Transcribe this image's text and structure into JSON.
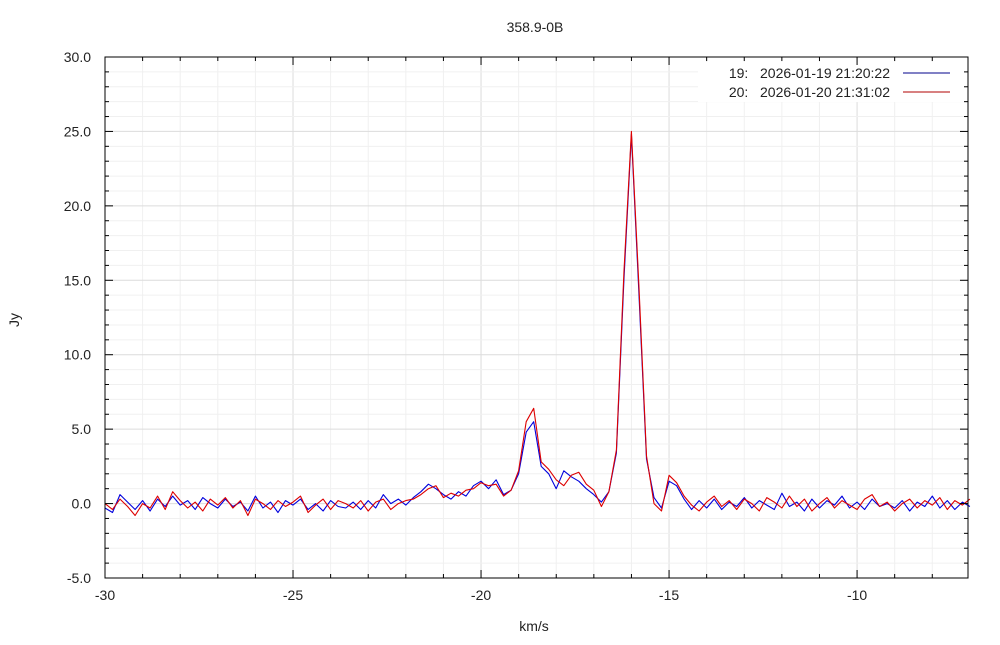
{
  "chart_data": {
    "type": "line",
    "title": "358.9-0B",
    "xlabel": "km/s",
    "ylabel": "Jy",
    "xlim": [
      -30,
      -7.05
    ],
    "ylim": [
      -5,
      30
    ],
    "grid": true,
    "legend_placement": "top-right",
    "x_ticks": [
      -30,
      -25,
      -20,
      -15,
      -10
    ],
    "x_tick_labels": [
      "-30",
      "-25",
      "-20",
      "-15",
      "-10"
    ],
    "y_ticks": [
      -5,
      0,
      5,
      10,
      15,
      20,
      25,
      30
    ],
    "y_tick_labels": [
      "-5.0",
      "0.0",
      "5.0",
      "10.0",
      "15.0",
      "20.0",
      "25.0",
      "30.0"
    ],
    "x": [
      -30.0,
      -29.8,
      -29.6,
      -29.4,
      -29.2,
      -29.0,
      -28.8,
      -28.6,
      -28.4,
      -28.2,
      -28.0,
      -27.8,
      -27.6,
      -27.4,
      -27.2,
      -27.0,
      -26.8,
      -26.6,
      -26.4,
      -26.2,
      -26.0,
      -25.8,
      -25.6,
      -25.4,
      -25.2,
      -25.0,
      -24.8,
      -24.6,
      -24.4,
      -24.2,
      -24.0,
      -23.8,
      -23.6,
      -23.4,
      -23.2,
      -23.0,
      -22.8,
      -22.6,
      -22.4,
      -22.2,
      -22.0,
      -21.8,
      -21.6,
      -21.4,
      -21.2,
      -21.0,
      -20.8,
      -20.6,
      -20.4,
      -20.2,
      -20.0,
      -19.8,
      -19.6,
      -19.4,
      -19.2,
      -19.0,
      -18.8,
      -18.6,
      -18.4,
      -18.2,
      -18.0,
      -17.8,
      -17.6,
      -17.4,
      -17.2,
      -17.0,
      -16.8,
      -16.6,
      -16.4,
      -16.2,
      -16.0,
      -15.8,
      -15.6,
      -15.4,
      -15.2,
      -15.0,
      -14.8,
      -14.6,
      -14.4,
      -14.2,
      -14.0,
      -13.8,
      -13.6,
      -13.4,
      -13.2,
      -13.0,
      -12.8,
      -12.6,
      -12.4,
      -12.2,
      -12.0,
      -11.8,
      -11.6,
      -11.4,
      -11.2,
      -11.0,
      -10.8,
      -10.6,
      -10.4,
      -10.2,
      -10.0,
      -9.8,
      -9.6,
      -9.4,
      -9.2,
      -9.0,
      -8.8,
      -8.6,
      -8.4,
      -8.2,
      -8.0,
      -7.8,
      -7.6,
      -7.4,
      -7.2,
      -7.0
    ],
    "series": [
      {
        "name": "19:   2026-01-19 21:20:22",
        "color": "#0000dd",
        "legend_color": "#00008b",
        "values": [
          -0.3,
          -0.6,
          0.6,
          0.1,
          -0.4,
          0.2,
          -0.5,
          0.3,
          -0.2,
          0.5,
          -0.1,
          0.2,
          -0.4,
          0.4,
          0.0,
          -0.3,
          0.3,
          -0.2,
          0.1,
          -0.5,
          0.5,
          -0.3,
          0.1,
          -0.6,
          0.2,
          -0.1,
          0.3,
          -0.4,
          0.0,
          -0.5,
          0.2,
          -0.2,
          -0.3,
          0.1,
          -0.4,
          0.2,
          -0.3,
          0.6,
          0.0,
          0.3,
          -0.1,
          0.4,
          0.8,
          1.3,
          1.0,
          0.6,
          0.3,
          0.8,
          0.5,
          1.2,
          1.5,
          1.0,
          1.6,
          0.6,
          0.9,
          2.0,
          4.8,
          5.5,
          2.5,
          2.0,
          1.0,
          2.2,
          1.8,
          1.5,
          1.0,
          0.6,
          0.1,
          0.8,
          3.4,
          15.0,
          24.8,
          14.0,
          3.0,
          0.4,
          -0.3,
          1.5,
          1.2,
          0.3,
          -0.4,
          0.2,
          -0.3,
          0.3,
          -0.4,
          0.1,
          -0.2,
          0.4,
          -0.3,
          0.2,
          -0.1,
          -0.4,
          0.7,
          -0.2,
          0.1,
          -0.5,
          0.3,
          -0.3,
          0.2,
          -0.1,
          0.5,
          -0.3,
          0.1,
          -0.4,
          0.3,
          -0.2,
          0.0,
          -0.3,
          0.2,
          -0.5,
          0.1,
          -0.2,
          0.5,
          -0.3,
          0.2,
          -0.4,
          0.1,
          -0.2
        ]
      },
      {
        "name": "20:   2026-01-20 21:31:02",
        "color": "#dd0000",
        "legend_color": "#b00000",
        "values": [
          0.0,
          -0.4,
          0.3,
          -0.2,
          -0.8,
          0.0,
          -0.3,
          0.5,
          -0.4,
          0.8,
          0.2,
          -0.3,
          0.1,
          -0.5,
          0.3,
          -0.1,
          0.4,
          -0.3,
          0.2,
          -0.8,
          0.3,
          0.0,
          -0.4,
          0.2,
          -0.2,
          0.1,
          0.5,
          -0.6,
          -0.1,
          0.3,
          -0.4,
          0.2,
          0.0,
          -0.3,
          0.2,
          -0.5,
          0.1,
          0.3,
          -0.4,
          0.0,
          0.2,
          0.3,
          0.6,
          1.0,
          1.2,
          0.4,
          0.7,
          0.5,
          0.9,
          1.0,
          1.4,
          1.2,
          1.3,
          0.5,
          0.9,
          2.2,
          5.5,
          6.4,
          2.8,
          2.3,
          1.6,
          1.2,
          1.9,
          2.1,
          1.3,
          0.9,
          -0.2,
          0.8,
          3.6,
          15.5,
          25.0,
          14.5,
          3.2,
          0.0,
          -0.5,
          1.9,
          1.4,
          0.5,
          -0.1,
          -0.5,
          0.1,
          0.5,
          -0.2,
          0.2,
          -0.4,
          0.3,
          0.0,
          -0.5,
          0.4,
          0.1,
          -0.3,
          0.5,
          -0.2,
          0.3,
          -0.5,
          0.0,
          0.4,
          -0.3,
          0.2,
          -0.1,
          -0.4,
          0.3,
          0.6,
          -0.2,
          0.1,
          -0.5,
          0.0,
          0.3,
          -0.3,
          0.2,
          -0.1,
          0.4,
          -0.4,
          0.2,
          -0.1,
          0.3
        ]
      }
    ]
  }
}
